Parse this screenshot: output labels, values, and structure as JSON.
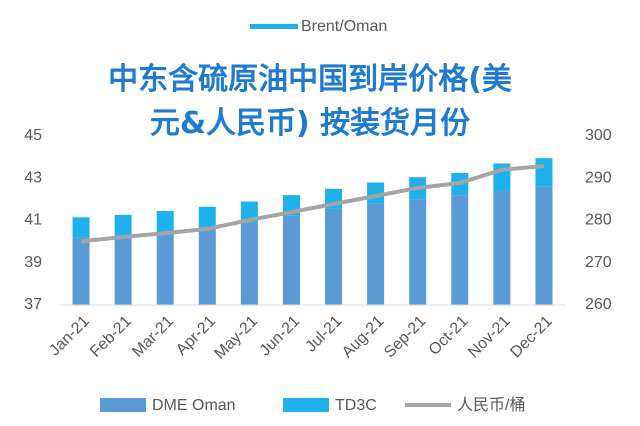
{
  "chart_data": {
    "type": "bar_line",
    "title": "中东含硫原油中国到岸价格(美元&人民币) 按装货月份",
    "header_legend": {
      "name": "Brent/Oman",
      "color": "#1eb1ec"
    },
    "categories": [
      "Jan-21",
      "Feb-21",
      "Mar-21",
      "Apr-21",
      "May-21",
      "Jun-21",
      "Jul-21",
      "Aug-21",
      "Sep-21",
      "Oct-21",
      "Nov-21",
      "Dec-21"
    ],
    "series": [
      {
        "name": "DME Oman",
        "color": "#5b9bd5",
        "kind": "bar",
        "stacked": true,
        "values": [
          40.2,
          40.27,
          40.4,
          40.55,
          40.9,
          41.25,
          41.55,
          41.8,
          42.0,
          42.2,
          42.4,
          42.6
        ]
      },
      {
        "name": "TD3C",
        "color": "#1eb1ec",
        "kind": "bar",
        "stacked": true,
        "values": [
          0.95,
          1.0,
          1.05,
          1.1,
          1.0,
          0.95,
          0.95,
          1.0,
          1.05,
          1.05,
          1.3,
          1.35
        ]
      },
      {
        "name": "人民币/桶",
        "color": "#a5a5a5",
        "kind": "line",
        "axis": "y2",
        "values": [
          275.1,
          276.1,
          277.0,
          278.0,
          280.1,
          282.0,
          283.9,
          285.8,
          287.7,
          288.9,
          292.0,
          292.9
        ]
      }
    ],
    "ylim": [
      37,
      45
    ],
    "yticks": [
      37,
      39,
      41,
      43,
      45
    ],
    "y2lim": [
      260,
      300
    ],
    "y2ticks": [
      260,
      270,
      280,
      290,
      300
    ],
    "grid": false
  }
}
